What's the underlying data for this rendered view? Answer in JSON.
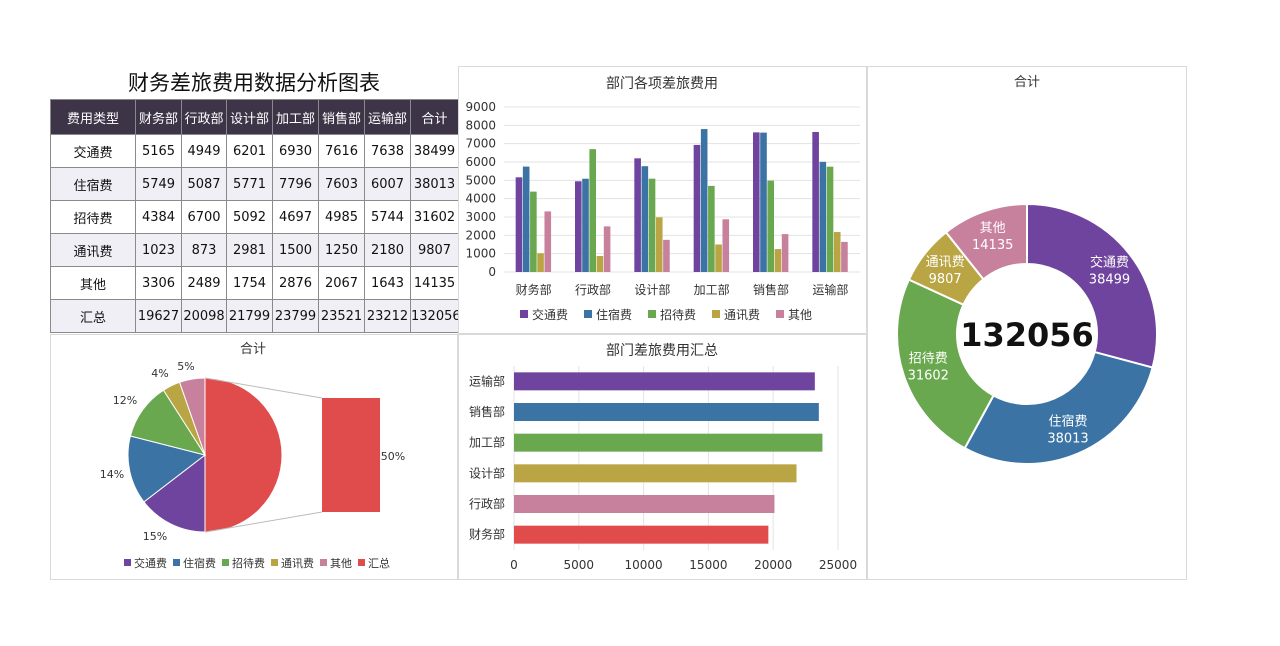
{
  "page_title": "财务差旅费用数据分析图表",
  "table": {
    "headers": [
      "费用类型",
      "财务部",
      "行政部",
      "设计部",
      "加工部",
      "销售部",
      "运输部",
      "合计"
    ],
    "rows": [
      [
        "交通费",
        "5165",
        "4949",
        "6201",
        "6930",
        "7616",
        "7638",
        "38499"
      ],
      [
        "住宿费",
        "5749",
        "5087",
        "5771",
        "7796",
        "7603",
        "6007",
        "38013"
      ],
      [
        "招待费",
        "4384",
        "6700",
        "5092",
        "4697",
        "4985",
        "5744",
        "31602"
      ],
      [
        "通讯费",
        "1023",
        "873",
        "2981",
        "1500",
        "1250",
        "2180",
        "9807"
      ],
      [
        "其他",
        "3306",
        "2489",
        "1754",
        "2876",
        "2067",
        "1643",
        "14135"
      ],
      [
        "汇总",
        "19627",
        "20098",
        "21799",
        "23799",
        "23521",
        "23212",
        "132056"
      ]
    ]
  },
  "colors": {
    "交通费": "#6f449e",
    "住宿费": "#3a73a4",
    "招待费": "#6aa84f",
    "通讯费": "#b9a544",
    "其他": "#c8819c",
    "汇总": "#e04b4b"
  },
  "chart_data": [
    {
      "type": "bar",
      "title": "部门各项差旅费用",
      "categories": [
        "财务部",
        "行政部",
        "设计部",
        "加工部",
        "销售部",
        "运输部"
      ],
      "series": [
        {
          "name": "交通费",
          "values": [
            5165,
            4949,
            6201,
            6930,
            7616,
            7638
          ]
        },
        {
          "name": "住宿费",
          "values": [
            5749,
            5087,
            5771,
            7796,
            7603,
            6007
          ]
        },
        {
          "name": "招待费",
          "values": [
            4384,
            6700,
            5092,
            4697,
            4985,
            5744
          ]
        },
        {
          "name": "通讯费",
          "values": [
            1023,
            873,
            2981,
            1500,
            1250,
            2180
          ]
        },
        {
          "name": "其他",
          "values": [
            3306,
            2489,
            1754,
            2876,
            2067,
            1643
          ]
        }
      ],
      "ylim": [
        0,
        9000
      ],
      "yticks": [
        0,
        1000,
        2000,
        3000,
        4000,
        5000,
        6000,
        7000,
        8000,
        9000
      ],
      "grid": true,
      "legend": "bottom"
    },
    {
      "type": "pie",
      "subtype": "donut",
      "title": "合计",
      "slices": [
        {
          "label": "交通费",
          "value": 38499
        },
        {
          "label": "住宿费",
          "value": 38013
        },
        {
          "label": "招待费",
          "value": 31602
        },
        {
          "label": "通讯费",
          "value": 9807
        },
        {
          "label": "其他",
          "value": 14135
        }
      ],
      "center_label": "132056"
    },
    {
      "type": "pie",
      "subtype": "bar-of-pie",
      "title": "合计",
      "slices": [
        {
          "label": "交通费",
          "value": 38499,
          "percent_label": "15%"
        },
        {
          "label": "住宿费",
          "value": 38013,
          "percent_label": "14%"
        },
        {
          "label": "招待费",
          "value": 31602,
          "percent_label": "12%"
        },
        {
          "label": "通讯费",
          "value": 9807,
          "percent_label": "4%"
        },
        {
          "label": "其他",
          "value": 14135,
          "percent_label": "5%"
        },
        {
          "label": "汇总",
          "value": 132056,
          "percent_label": "50%"
        }
      ],
      "legend": "bottom"
    },
    {
      "type": "bar",
      "orientation": "horizontal",
      "title": "部门差旅费用汇总",
      "categories": [
        "运输部",
        "销售部",
        "加工部",
        "设计部",
        "行政部",
        "财务部"
      ],
      "values": [
        23212,
        23521,
        23799,
        21799,
        20098,
        19627
      ],
      "bar_colors": [
        "#6f449e",
        "#3a73a4",
        "#6aa84f",
        "#b9a544",
        "#c8819c",
        "#e04b4b"
      ],
      "xlim": [
        0,
        25000
      ],
      "xticks": [
        0,
        5000,
        10000,
        15000,
        20000,
        25000
      ],
      "grid": true
    }
  ]
}
